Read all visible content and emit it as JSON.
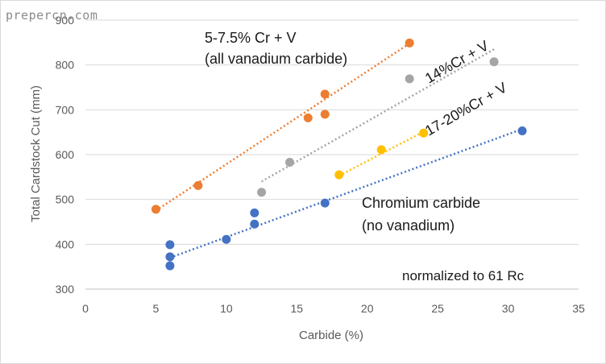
{
  "watermark": "prepercn.com",
  "chart_data": {
    "type": "scatter",
    "title": "",
    "xlabel": "Carbide (%)",
    "ylabel": "Total Cardstock Cut (mm)",
    "xlim": [
      0,
      35
    ],
    "ylim": [
      300,
      900
    ],
    "xticks": [
      0,
      5,
      10,
      15,
      20,
      25,
      30,
      35
    ],
    "yticks": [
      300,
      400,
      500,
      600,
      700,
      800,
      900
    ],
    "grid": true,
    "series": [
      {
        "name": "5-7.5% Cr + V (all vanadium carbide)",
        "color": "#ED7D31",
        "points": [
          [
            5,
            478
          ],
          [
            8,
            531
          ],
          [
            15.8,
            682
          ],
          [
            17,
            690
          ],
          [
            17,
            735
          ],
          [
            23,
            849
          ]
        ],
        "trendline": [
          [
            5,
            475
          ],
          [
            23,
            848
          ]
        ]
      },
      {
        "name": "14%Cr + V",
        "color": "#A5A5A5",
        "points": [
          [
            12.5,
            516
          ],
          [
            14.5,
            583
          ],
          [
            23,
            769
          ],
          [
            29,
            807
          ]
        ],
        "trendline": [
          [
            12.5,
            540
          ],
          [
            29,
            835
          ]
        ]
      },
      {
        "name": "17-20%Cr + V",
        "color": "#FFC000",
        "points": [
          [
            18,
            555
          ],
          [
            21,
            611
          ],
          [
            24,
            648
          ]
        ],
        "trendline": [
          [
            18,
            553
          ],
          [
            24,
            651
          ]
        ]
      },
      {
        "name": "Chromium carbide (no vanadium)",
        "color": "#4472C4",
        "points": [
          [
            6,
            352
          ],
          [
            6,
            372
          ],
          [
            6,
            399
          ],
          [
            10,
            411
          ],
          [
            12,
            445
          ],
          [
            12,
            470
          ],
          [
            17,
            492
          ],
          [
            31,
            653
          ]
        ],
        "trendline": [
          [
            6,
            370
          ],
          [
            31,
            657
          ]
        ]
      }
    ],
    "annotations": {
      "orange_line1": "5-7.5% Cr + V",
      "orange_line2": "(all vanadium carbide)",
      "gray_label": "14%Cr + V",
      "yellow_label": "17-20%Cr + V",
      "blue_line1": "Chromium carbide",
      "blue_line2": "(no vanadium)",
      "note": "normalized to 61 Rc"
    }
  }
}
